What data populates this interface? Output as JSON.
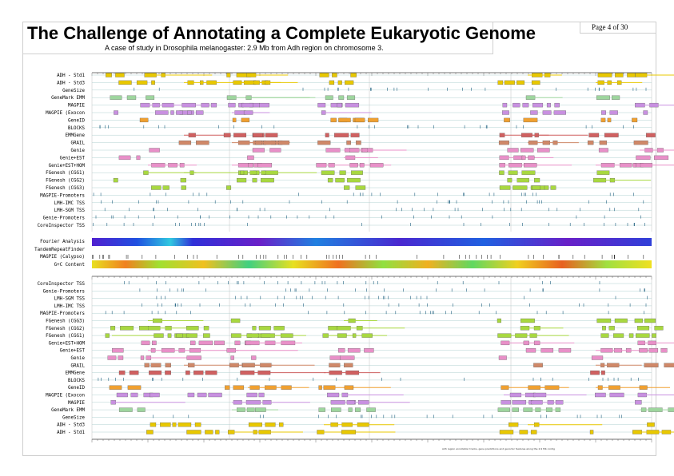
{
  "title": "The Challenge of Annotating a Complete Eukaryotic Genome",
  "subtitle": "A case of study in Drosophila melanogaster: 2.9 Mb from Adh region on chromosome 3.",
  "page_label": "Page 4 of 30",
  "footer_text": "Adh region annotation tracks, gene predictions and genomic features along the 2.9 Mb contig",
  "top_tracks": [
    "ADH - Std1",
    "ADH - Std3",
    "GeneSize",
    "GeneMark EMM",
    "MAGPIE",
    "MAGPIE (Exocon",
    "GeneID",
    "BLOCKS",
    "EMMGene",
    "GRAIL",
    "Genie",
    "Genie+EST",
    "Genie+EST+HOM",
    "FGenesh (CGG1)",
    "FGenesh (CGG2)",
    "FGenesh (CGG3)",
    "MAGPIE-Promoters",
    "LMH-IMC TSS",
    "LMH-SGM TSS",
    "Genie-Promoters",
    "CoreInspector TSS"
  ],
  "middle_tracks": [
    "Fourier Analysis",
    "TandemRepeatFinder",
    "MAGPIE (Calypso)",
    "G+C Content"
  ],
  "bottom_tracks": [
    "CoreInspector TSS",
    "Genie-Promoters",
    "LMH-SGM TSS",
    "LMH-IMC TSS",
    "MAGPIE-Promoters",
    "FGenesh (CGG3)",
    "FGenesh (CGG2)",
    "FGenesh (CGG1)",
    "Genie+EST+HOM",
    "Genie+EST",
    "Genie",
    "GRAIL",
    "EMMGene",
    "BLOCKS",
    "GeneID",
    "MAGPIE (Exocon",
    "MAGPIE",
    "GeneMark EMM",
    "GeneSize",
    "ADH - Std3",
    "ADH - Std1"
  ],
  "colors": {
    "std": "#e8c800",
    "genemark": "#9ed59e",
    "magpie": "#c890e0",
    "geneid": "#f0a030",
    "emm": "#d06060",
    "grail": "#d08868",
    "genie": "#e890c8",
    "fgenesh": "#a8d840",
    "tss": "#206080",
    "grid": "#b0d0d0"
  }
}
